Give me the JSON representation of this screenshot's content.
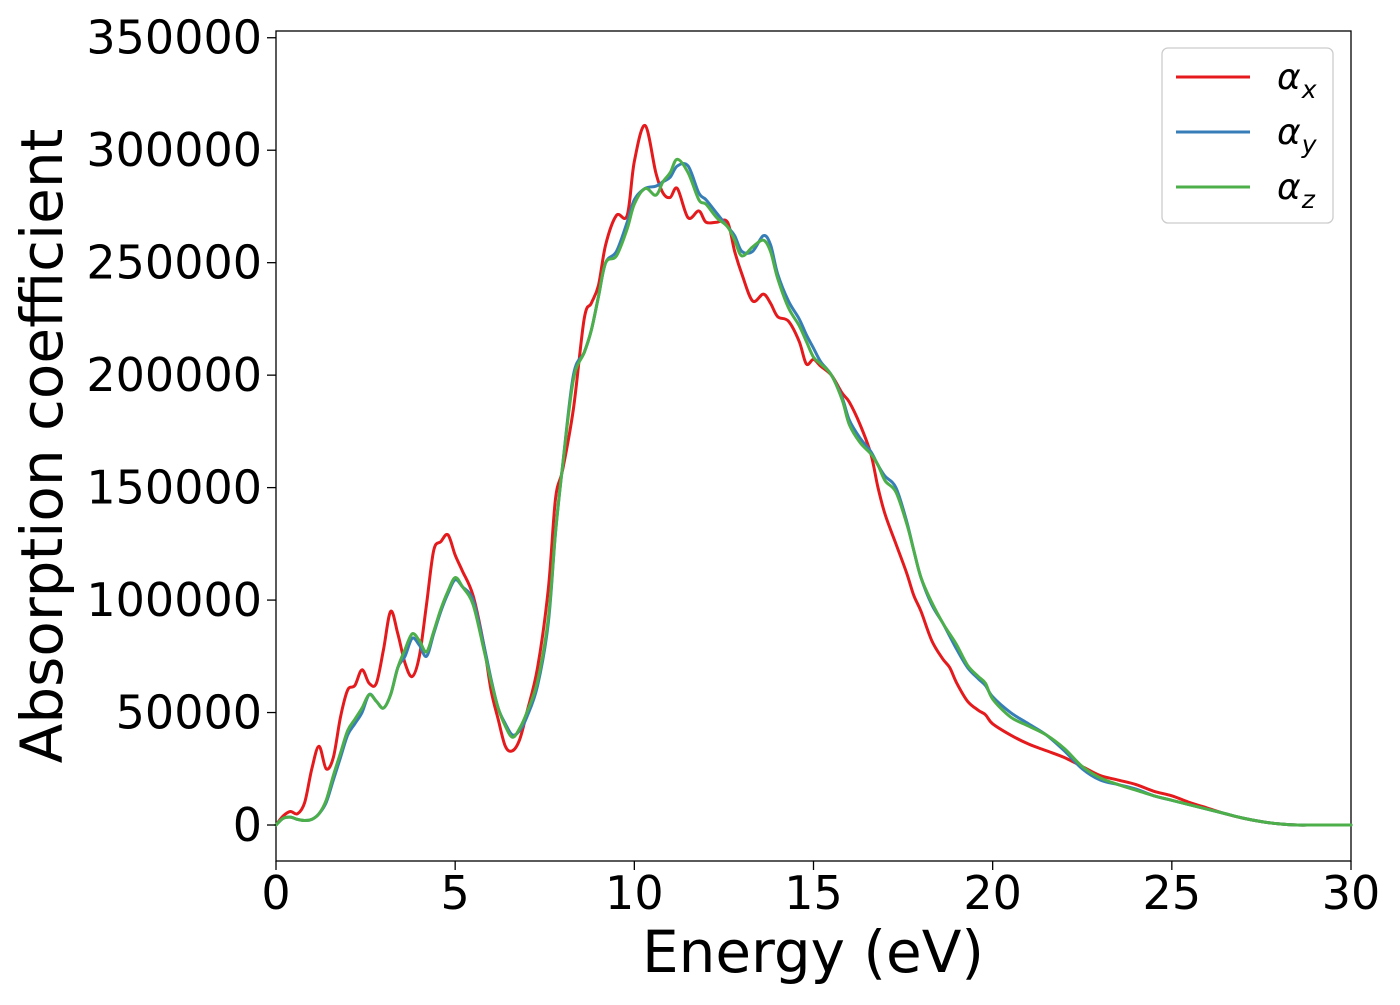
{
  "chart_data": {
    "type": "line",
    "title": "",
    "xlabel": "Energy (eV)",
    "ylabel": "Absorption coefficient",
    "xlim": [
      0,
      30
    ],
    "ylim": [
      -16000,
      353000
    ],
    "xticks": [
      0,
      5,
      10,
      15,
      20,
      25,
      30
    ],
    "xtick_labels": [
      "0",
      "5",
      "10",
      "15",
      "20",
      "25",
      "30"
    ],
    "yticks": [
      0,
      50000,
      100000,
      150000,
      200000,
      250000,
      300000,
      350000
    ],
    "ytick_labels": [
      "0",
      "50000",
      "100000",
      "150000",
      "200000",
      "250000",
      "300000",
      "350000"
    ],
    "grid": false,
    "legend_position": "top-right",
    "legend_entries": [
      {
        "base": "α",
        "sub": "x"
      },
      {
        "base": "α",
        "sub": "y"
      },
      {
        "base": "α",
        "sub": "z"
      }
    ],
    "series": [
      {
        "name": "αx",
        "color": "#e41a1c",
        "x": [
          0,
          0.2,
          0.4,
          0.6,
          0.8,
          1.0,
          1.2,
          1.4,
          1.6,
          1.8,
          2.0,
          2.2,
          2.4,
          2.6,
          2.8,
          3.0,
          3.2,
          3.4,
          3.6,
          3.8,
          4.0,
          4.2,
          4.4,
          4.6,
          4.8,
          5.0,
          5.2,
          5.5,
          5.8,
          6.0,
          6.2,
          6.4,
          6.6,
          6.8,
          7.0,
          7.3,
          7.6,
          7.8,
          8.0,
          8.3,
          8.6,
          8.8,
          9.0,
          9.2,
          9.5,
          9.8,
          10.0,
          10.3,
          10.6,
          10.8,
          11.0,
          11.2,
          11.5,
          11.8,
          12.0,
          12.3,
          12.6,
          12.8,
          13.0,
          13.3,
          13.6,
          13.8,
          14.0,
          14.3,
          14.6,
          14.8,
          15.0,
          15.2,
          15.5,
          15.8,
          16.0,
          16.3,
          16.6,
          16.8,
          17.0,
          17.3,
          17.6,
          17.8,
          18.0,
          18.3,
          18.6,
          18.8,
          19.0,
          19.3,
          19.6,
          19.8,
          20.0,
          20.5,
          21.0,
          21.5,
          22.0,
          22.5,
          23.0,
          23.5,
          24.0,
          24.5,
          25.0,
          25.5,
          26.0,
          26.5,
          27.0,
          27.5,
          28.0,
          28.5,
          29.0,
          30.0
        ],
        "y": [
          0,
          4000,
          6000,
          5000,
          10000,
          25000,
          35000,
          25000,
          30000,
          48000,
          60000,
          62000,
          69000,
          63000,
          63000,
          78000,
          95000,
          85000,
          72000,
          66000,
          75000,
          98000,
          122000,
          126000,
          129000,
          120000,
          113000,
          102000,
          80000,
          60000,
          47000,
          35000,
          33000,
          38000,
          50000,
          70000,
          105000,
          145000,
          158000,
          185000,
          225000,
          232000,
          240000,
          258000,
          271000,
          271000,
          295000,
          311000,
          290000,
          281000,
          279000,
          283000,
          270000,
          273000,
          268000,
          268000,
          268000,
          255000,
          245000,
          233000,
          236000,
          232000,
          226000,
          224000,
          215000,
          205000,
          207000,
          204000,
          200000,
          192000,
          188000,
          178000,
          165000,
          150000,
          138000,
          125000,
          112000,
          102000,
          95000,
          82000,
          74000,
          70000,
          63000,
          55000,
          51000,
          49000,
          45000,
          40000,
          36000,
          33000,
          30000,
          26000,
          22000,
          20000,
          18000,
          15000,
          13000,
          10000,
          7500,
          5000,
          3000,
          1500,
          500,
          0,
          0,
          0
        ]
      },
      {
        "name": "αy",
        "color": "#377eb8",
        "x": [
          0,
          0.2,
          0.4,
          0.6,
          0.8,
          1.0,
          1.2,
          1.4,
          1.6,
          1.8,
          2.0,
          2.2,
          2.4,
          2.6,
          2.8,
          3.0,
          3.2,
          3.4,
          3.6,
          3.8,
          4.0,
          4.2,
          4.4,
          4.6,
          4.8,
          5.0,
          5.2,
          5.5,
          5.8,
          6.0,
          6.2,
          6.4,
          6.6,
          6.8,
          7.0,
          7.3,
          7.6,
          7.8,
          8.0,
          8.3,
          8.6,
          8.8,
          9.0,
          9.2,
          9.5,
          9.8,
          10.0,
          10.3,
          10.6,
          10.8,
          11.0,
          11.2,
          11.5,
          11.8,
          12.0,
          12.3,
          12.6,
          12.8,
          13.0,
          13.3,
          13.6,
          13.8,
          14.0,
          14.3,
          14.6,
          14.8,
          15.0,
          15.2,
          15.5,
          15.8,
          16.0,
          16.3,
          16.6,
          16.8,
          17.0,
          17.3,
          17.6,
          17.8,
          18.0,
          18.3,
          18.6,
          18.8,
          19.0,
          19.3,
          19.6,
          19.8,
          20.0,
          20.5,
          21.0,
          21.5,
          22.0,
          22.5,
          23.0,
          23.5,
          24.0,
          24.5,
          25.0,
          25.5,
          26.0,
          26.5,
          27.0,
          27.5,
          28.0,
          28.5,
          29.0,
          30.0
        ],
        "y": [
          0,
          3000,
          3500,
          2500,
          2000,
          2500,
          5000,
          10000,
          20000,
          30000,
          40000,
          45000,
          50000,
          58000,
          55000,
          52000,
          58000,
          70000,
          75000,
          83000,
          80000,
          75000,
          85000,
          95000,
          103000,
          109000,
          106000,
          100000,
          80000,
          65000,
          52000,
          45000,
          40000,
          42000,
          48000,
          62000,
          90000,
          130000,
          160000,
          200000,
          210000,
          220000,
          235000,
          250000,
          255000,
          268000,
          278000,
          283000,
          284000,
          286000,
          288000,
          293000,
          293000,
          281000,
          278000,
          272000,
          266000,
          262000,
          255000,
          255000,
          262000,
          258000,
          245000,
          233000,
          225000,
          218000,
          212000,
          206000,
          200000,
          190000,
          180000,
          172000,
          166000,
          160000,
          155000,
          150000,
          135000,
          122000,
          110000,
          98000,
          90000,
          84000,
          78000,
          70000,
          65000,
          62000,
          57000,
          50000,
          45000,
          40000,
          33000,
          25000,
          20000,
          18000,
          16000,
          13000,
          11000,
          9000,
          7000,
          5000,
          3000,
          1500,
          500,
          0,
          0,
          0
        ]
      },
      {
        "name": "αz",
        "color": "#4daf4a",
        "x": [
          0,
          0.2,
          0.4,
          0.6,
          0.8,
          1.0,
          1.2,
          1.4,
          1.6,
          1.8,
          2.0,
          2.2,
          2.4,
          2.6,
          2.8,
          3.0,
          3.2,
          3.4,
          3.6,
          3.8,
          4.0,
          4.2,
          4.4,
          4.6,
          4.8,
          5.0,
          5.2,
          5.5,
          5.8,
          6.0,
          6.2,
          6.4,
          6.6,
          6.8,
          7.0,
          7.3,
          7.6,
          7.8,
          8.0,
          8.3,
          8.6,
          8.8,
          9.0,
          9.2,
          9.5,
          9.8,
          10.0,
          10.3,
          10.6,
          10.8,
          11.0,
          11.2,
          11.5,
          11.8,
          12.0,
          12.3,
          12.6,
          12.8,
          13.0,
          13.3,
          13.6,
          13.8,
          14.0,
          14.3,
          14.6,
          14.8,
          15.0,
          15.2,
          15.5,
          15.8,
          16.0,
          16.3,
          16.6,
          16.8,
          17.0,
          17.3,
          17.6,
          17.8,
          18.0,
          18.3,
          18.6,
          18.8,
          19.0,
          19.3,
          19.6,
          19.8,
          20.0,
          20.5,
          21.0,
          21.5,
          22.0,
          22.5,
          23.0,
          23.5,
          24.0,
          24.5,
          25.0,
          25.5,
          26.0,
          26.5,
          27.0,
          27.5,
          28.0,
          28.5,
          29.0,
          30.0
        ],
        "y": [
          0,
          3000,
          3500,
          2500,
          2000,
          2500,
          5000,
          11000,
          22000,
          32000,
          42000,
          47000,
          52000,
          58000,
          55000,
          52000,
          58000,
          70000,
          78000,
          85000,
          82000,
          77000,
          86000,
          96000,
          104000,
          110000,
          106000,
          98000,
          78000,
          64000,
          52000,
          44000,
          39000,
          43000,
          50000,
          64000,
          92000,
          130000,
          160000,
          198000,
          210000,
          220000,
          235000,
          250000,
          253000,
          265000,
          276000,
          283000,
          280000,
          286000,
          290000,
          296000,
          290000,
          278000,
          276000,
          270000,
          266000,
          260000,
          253000,
          257000,
          260000,
          255000,
          243000,
          230000,
          222000,
          215000,
          208000,
          205000,
          200000,
          189000,
          178000,
          170000,
          165000,
          160000,
          153000,
          148000,
          134000,
          122000,
          110000,
          99000,
          90000,
          85000,
          80000,
          71000,
          66000,
          63000,
          56000,
          48000,
          44000,
          40000,
          34000,
          26000,
          21000,
          18000,
          15500,
          13000,
          11000,
          9000,
          7000,
          5000,
          3000,
          1500,
          500,
          0,
          0,
          0
        ]
      }
    ]
  }
}
